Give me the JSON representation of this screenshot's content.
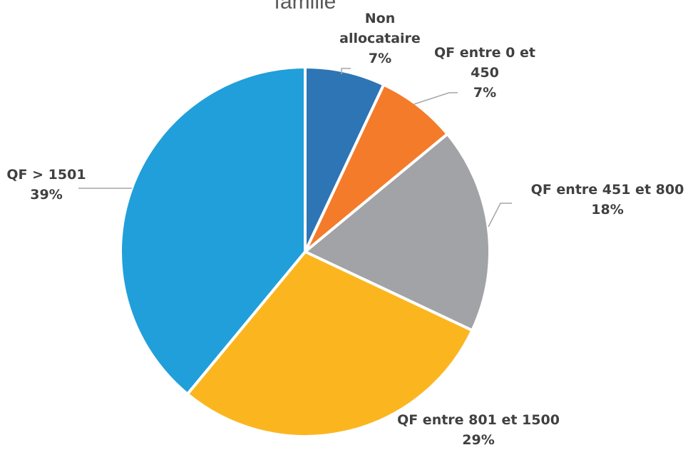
{
  "chart_data": {
    "type": "pie",
    "title": "famille",
    "slices": [
      {
        "label": "Non allocataire",
        "value": 7,
        "display": "7%",
        "color": "#2E75B6"
      },
      {
        "label": "QF entre 0 et 450",
        "value": 7,
        "display": "7%",
        "color": "#F47B2A"
      },
      {
        "label": "QF entre 451 et 800",
        "value": 18,
        "display": "18%",
        "color": "#A1A3A6"
      },
      {
        "label": "QF entre 801 et 1500",
        "value": 29,
        "display": "29%",
        "color": "#FBB61F"
      },
      {
        "label": "QF > 1501",
        "value": 39,
        "display": "39%",
        "color": "#219FDA"
      }
    ],
    "legend": "none"
  }
}
